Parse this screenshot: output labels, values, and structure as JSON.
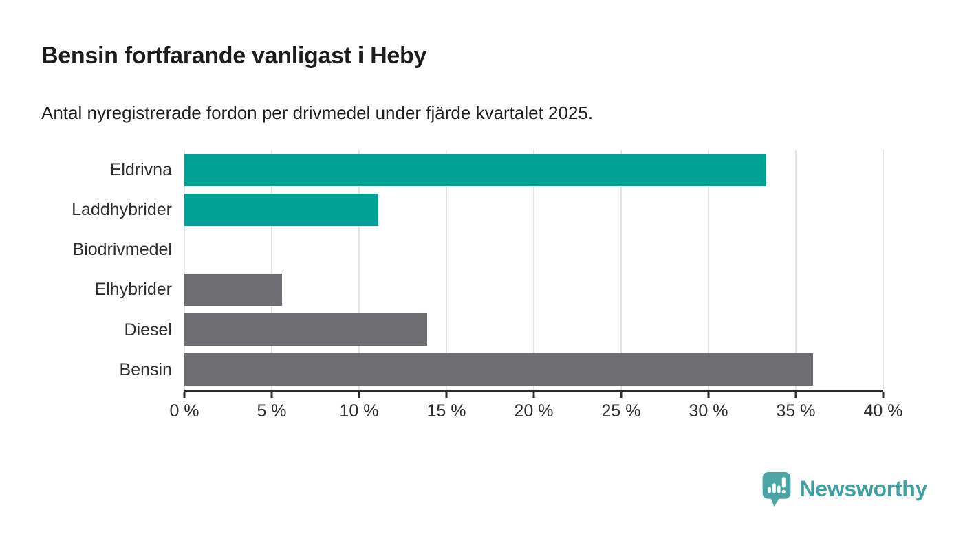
{
  "chart_data": {
    "type": "bar",
    "orientation": "horizontal",
    "title": "Bensin fortfarande vanligast i Heby",
    "subtitle": "Antal nyregistrerade fordon per drivmedel under fjärde kvartalet 2025.",
    "categories": [
      "Eldrivna",
      "Laddhybrider",
      "Biodrivmedel",
      "Elhybrider",
      "Diesel",
      "Bensin"
    ],
    "values": [
      33.3,
      11.1,
      0,
      5.6,
      13.9,
      36
    ],
    "unit": "%",
    "xlim": [
      0,
      40
    ],
    "x_ticks": [
      "0 %",
      "5 %",
      "10 %",
      "15 %",
      "20 %",
      "25 %",
      "30 %",
      "35 %",
      "40 %"
    ],
    "grid": "vertical",
    "legend": "none",
    "bar_colors": [
      "#00A195",
      "#00A195",
      "#6E6E72",
      "#6E6E72",
      "#6E6E72",
      "#6E6E72"
    ],
    "colors": {
      "accent_teal": "#00A195",
      "neutral_gray": "#6E6E72",
      "axis": "#2B2B2B",
      "gridline": "#E3E3E3",
      "text": "#1E1E1E"
    }
  },
  "footer": {
    "brand": "Newsworthy",
    "logo_icon": "speech-bubble-bar-chart-exclamation",
    "logo_color": "#4AA5A4",
    "brand_text_color": "#3FA0A1"
  }
}
